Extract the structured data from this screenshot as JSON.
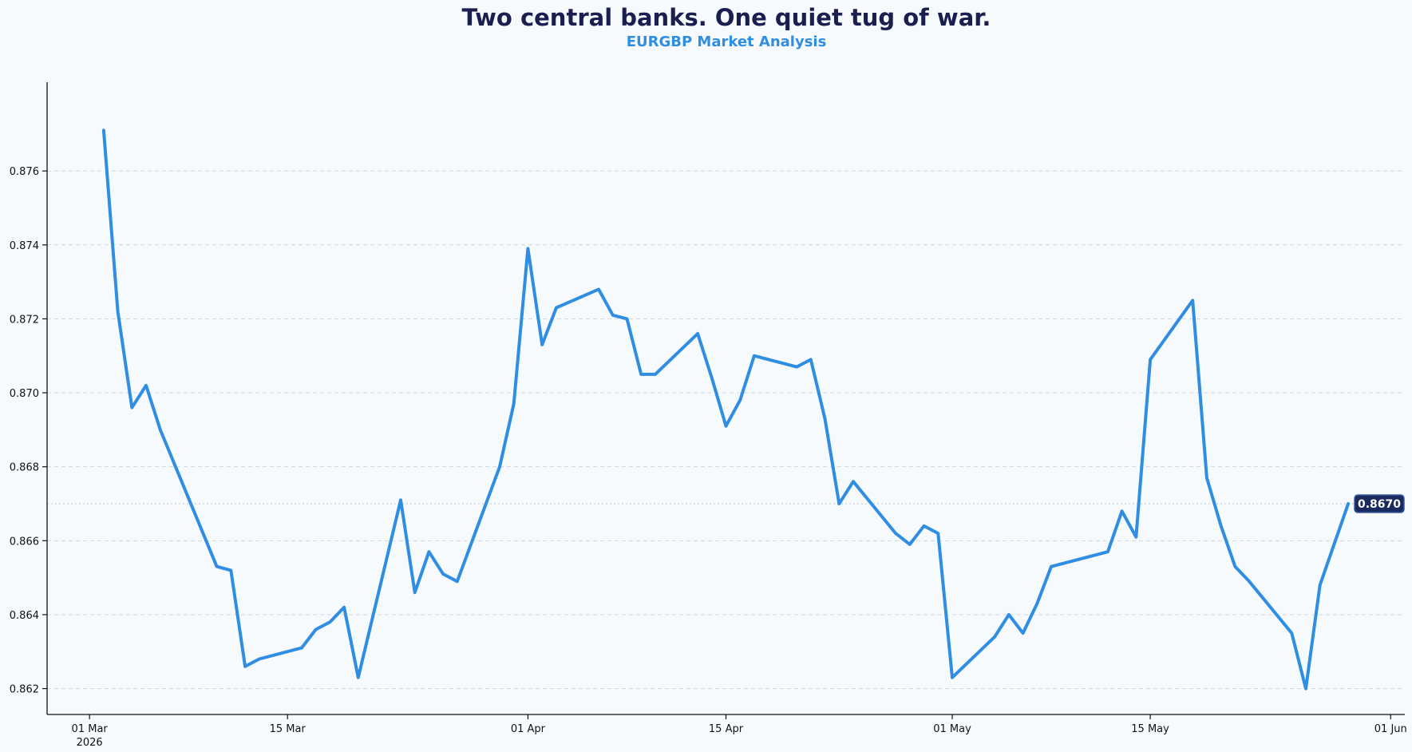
{
  "title": "Two central banks. One quiet tug of war.",
  "subtitle": "EURGBP Market Analysis",
  "colors": {
    "line": "#2f8ee2",
    "title": "#1b1f50",
    "subtitle": "#2f8ee2",
    "badge": "#1b2a5e",
    "background": "#f7fafd"
  },
  "last_value_label": "0.8670",
  "chart_data": {
    "type": "line",
    "title": "Two central banks. One quiet tug of war.",
    "subtitle": "EURGBP Market Analysis",
    "xlabel": "",
    "ylabel": "",
    "ylim": [
      0.8613,
      0.8784
    ],
    "xlim": [
      "2026-02-26",
      "2026-06-02"
    ],
    "grid": "horizontal-dashed",
    "x_ticks": [
      {
        "date": "2026-03-01",
        "label": "01 Mar",
        "sublabel": "2026"
      },
      {
        "date": "2026-03-15",
        "label": "15 Mar",
        "sublabel": ""
      },
      {
        "date": "2026-04-01",
        "label": "01 Apr",
        "sublabel": ""
      },
      {
        "date": "2026-04-15",
        "label": "15 Apr",
        "sublabel": ""
      },
      {
        "date": "2026-05-01",
        "label": "01 May",
        "sublabel": ""
      },
      {
        "date": "2026-05-15",
        "label": "15 May",
        "sublabel": ""
      },
      {
        "date": "2026-06-01",
        "label": "01 Jun",
        "sublabel": ""
      }
    ],
    "y_ticks": [
      "0.862",
      "0.864",
      "0.866",
      "0.868",
      "0.870",
      "0.872",
      "0.874",
      "0.876"
    ],
    "last_value": 0.867,
    "series": [
      {
        "x": [
          "2026-03-02",
          "2026-03-03",
          "2026-03-04",
          "2026-03-05",
          "2026-03-06",
          "2026-03-10",
          "2026-03-11",
          "2026-03-12",
          "2026-03-13",
          "2026-03-16",
          "2026-03-17",
          "2026-03-18",
          "2026-03-19",
          "2026-03-20",
          "2026-03-23",
          "2026-03-24",
          "2026-03-25",
          "2026-03-26",
          "2026-03-27",
          "2026-03-30",
          "2026-03-31",
          "2026-04-01",
          "2026-04-02",
          "2026-04-03",
          "2026-04-06",
          "2026-04-07",
          "2026-04-08",
          "2026-04-09",
          "2026-04-10",
          "2026-04-13",
          "2026-04-14",
          "2026-04-15",
          "2026-04-16",
          "2026-04-17",
          "2026-04-20",
          "2026-04-21",
          "2026-04-22",
          "2026-04-23",
          "2026-04-24",
          "2026-04-27",
          "2026-04-28",
          "2026-04-29",
          "2026-04-30",
          "2026-05-01",
          "2026-05-04",
          "2026-05-05",
          "2026-05-06",
          "2026-05-07",
          "2026-05-08",
          "2026-05-11",
          "2026-05-12",
          "2026-05-13",
          "2026-05-14",
          "2026-05-15",
          "2026-05-18",
          "2026-05-19",
          "2026-05-20",
          "2026-05-21",
          "2026-05-22",
          "2026-05-25",
          "2026-05-26",
          "2026-05-27",
          "2026-05-28",
          "2026-05-29"
        ],
        "values": [
          0.8771,
          0.8722,
          0.8696,
          0.8702,
          0.869,
          0.8653,
          0.8652,
          0.8626,
          0.8628,
          0.8631,
          0.8636,
          0.8638,
          0.8642,
          0.8623,
          0.8671,
          0.8646,
          0.8657,
          0.8651,
          0.8649,
          0.868,
          0.8697,
          0.8739,
          0.8713,
          0.8723,
          0.8728,
          0.8721,
          0.872,
          0.8705,
          0.8705,
          0.8716,
          0.8704,
          0.8691,
          0.8698,
          0.871,
          0.8707,
          0.8709,
          0.8693,
          0.867,
          0.8676,
          0.8662,
          0.8659,
          0.8664,
          0.8662,
          0.8623,
          0.8634,
          0.864,
          0.8635,
          0.8643,
          0.8653,
          0.8656,
          0.8657,
          0.8668,
          0.8661,
          0.8709,
          0.8725,
          0.8677,
          0.8664,
          0.8653,
          0.8649,
          0.8635,
          0.862,
          0.8648,
          0.8659,
          0.867
        ]
      }
    ]
  }
}
